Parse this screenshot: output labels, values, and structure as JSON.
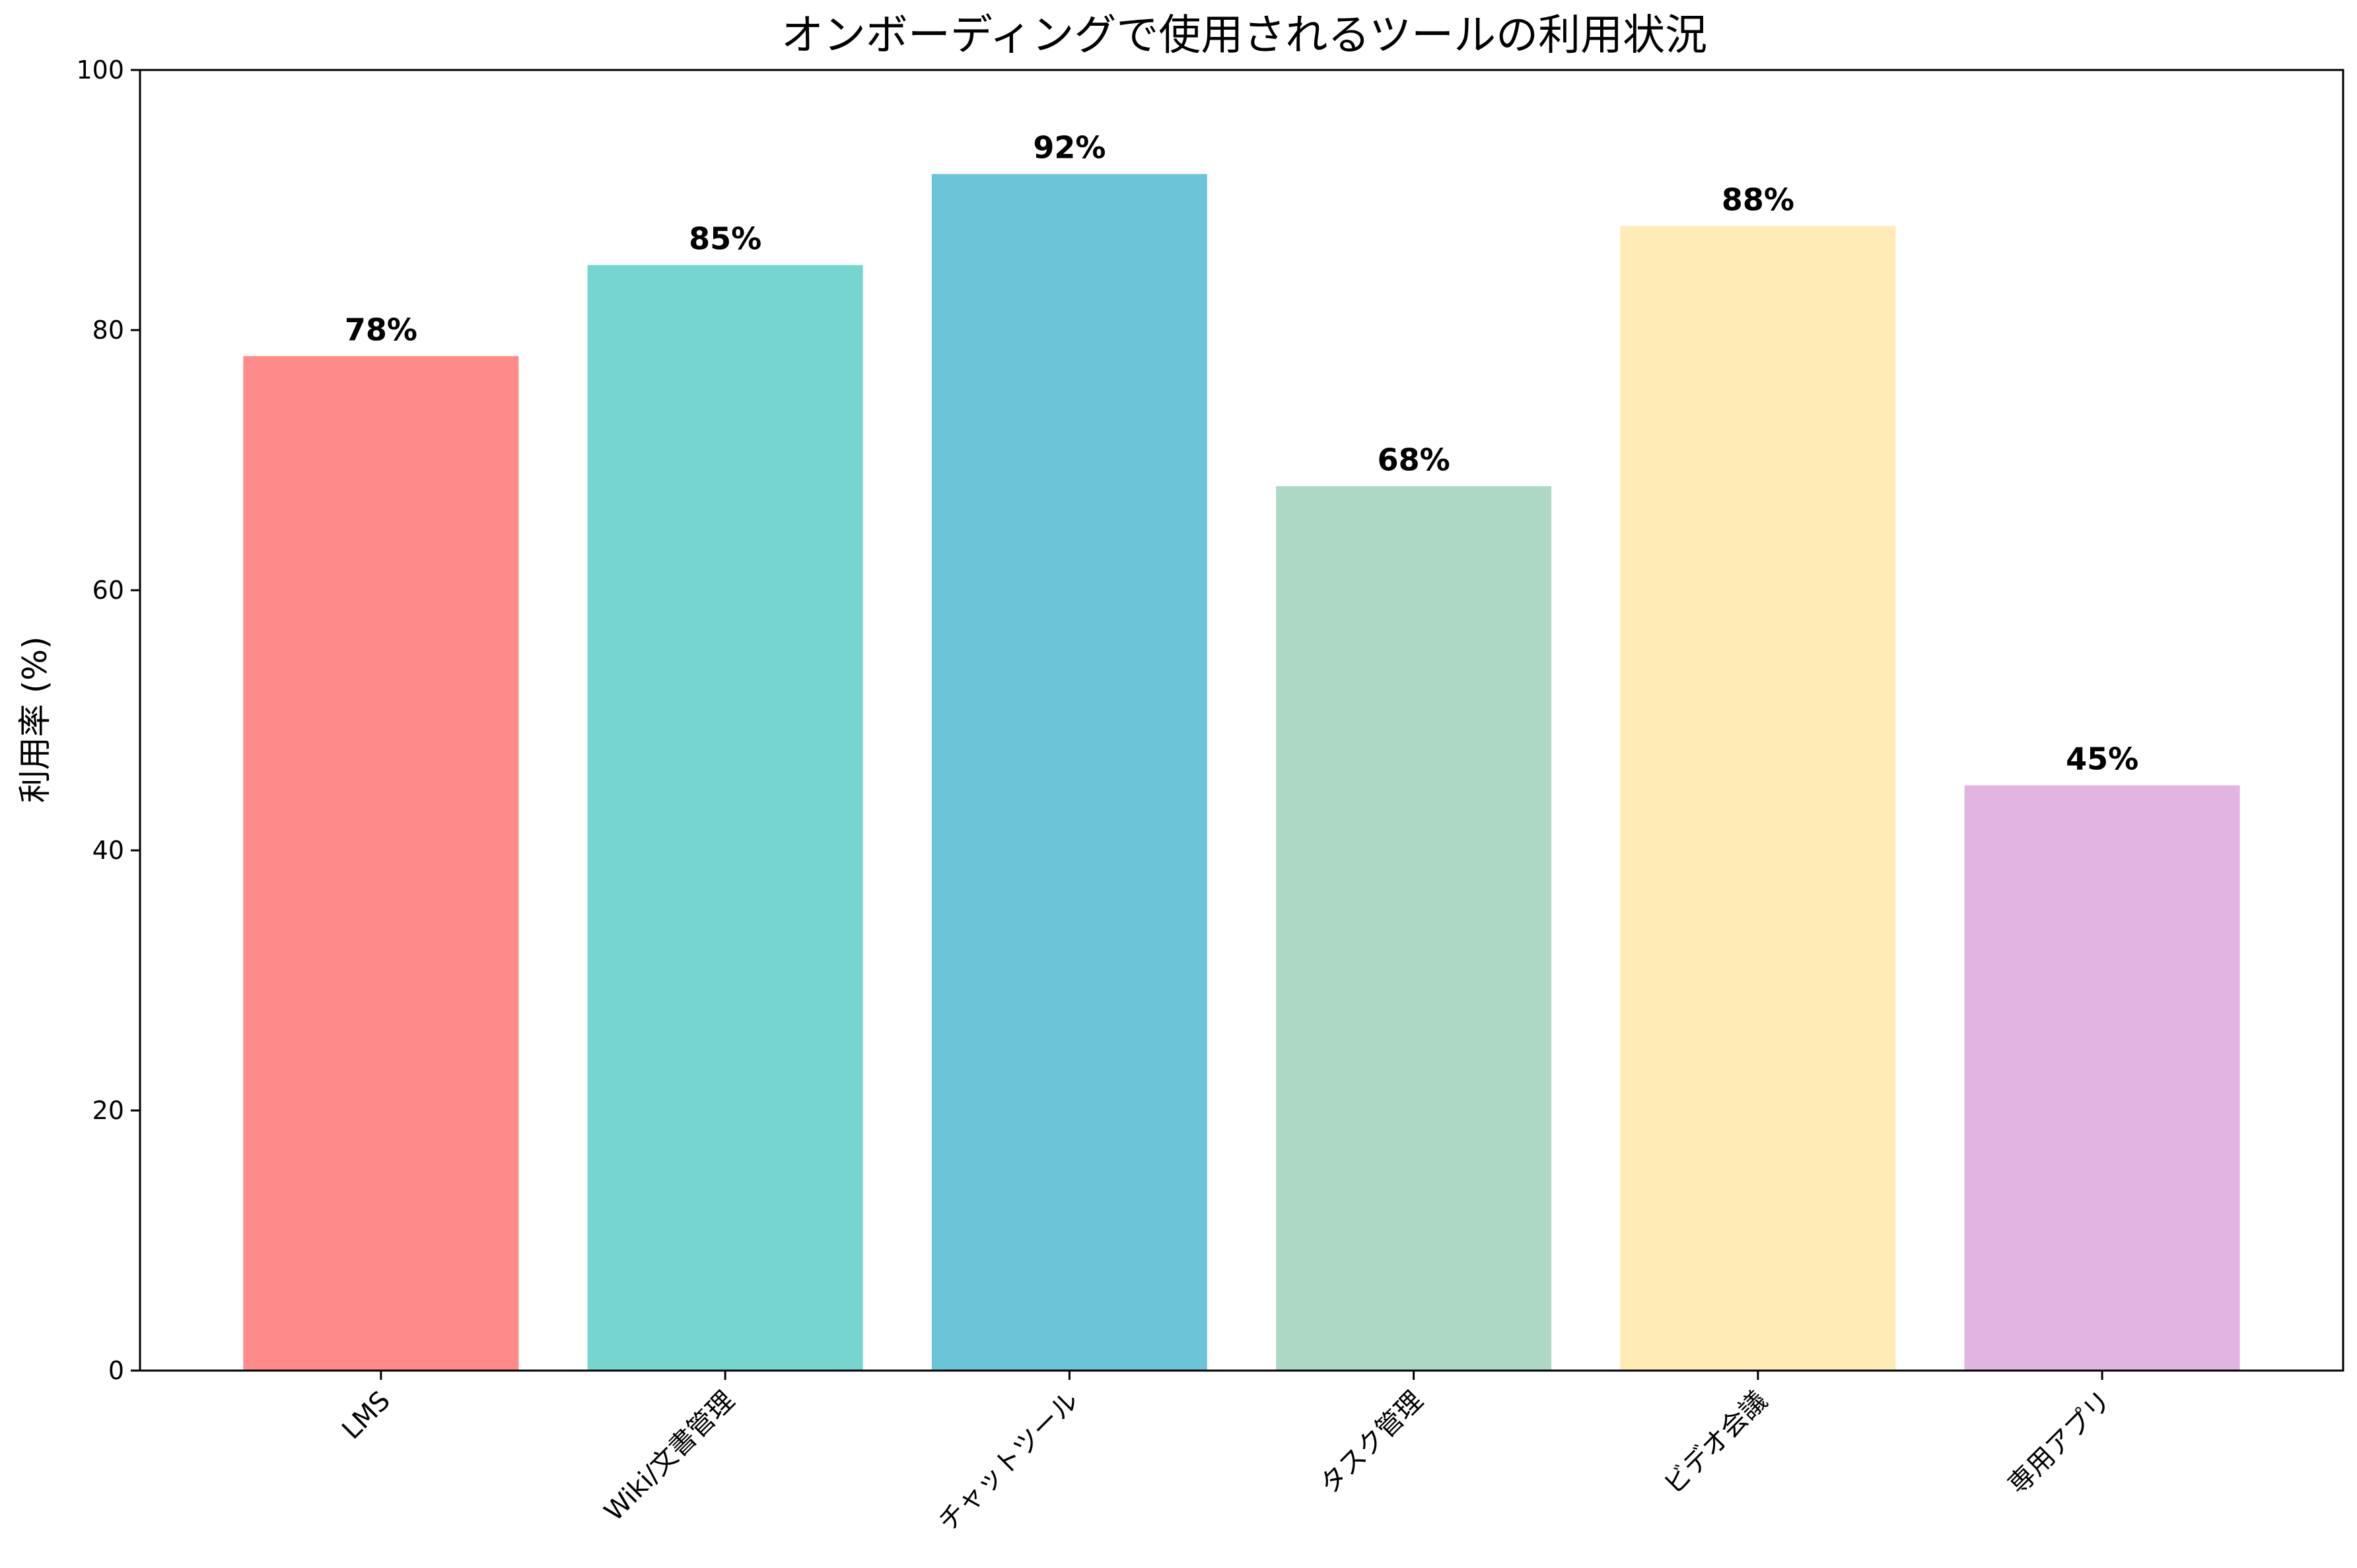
{
  "chart_data": {
    "type": "bar",
    "title": "オンボーディングで使用されるツールの利用状況",
    "xlabel": "",
    "ylabel": "利用率 (%)",
    "ylim": [
      0,
      100
    ],
    "yticks": [
      0,
      20,
      40,
      60,
      80,
      100
    ],
    "categories": [
      "LMS",
      "Wiki/文書管理",
      "チャットツール",
      "タスク管理",
      "ビデオ会議",
      "専用アプリ"
    ],
    "values": [
      78,
      85,
      92,
      68,
      88,
      45
    ],
    "value_labels": [
      "78%",
      "85%",
      "92%",
      "68%",
      "88%",
      "45%"
    ],
    "colors": [
      "#FF8A8A",
      "#74D6CF",
      "#6CC4D8",
      "#ADD8C4",
      "#FFEBB5",
      "#E1B4E2"
    ],
    "grid": false,
    "legend": "none"
  }
}
